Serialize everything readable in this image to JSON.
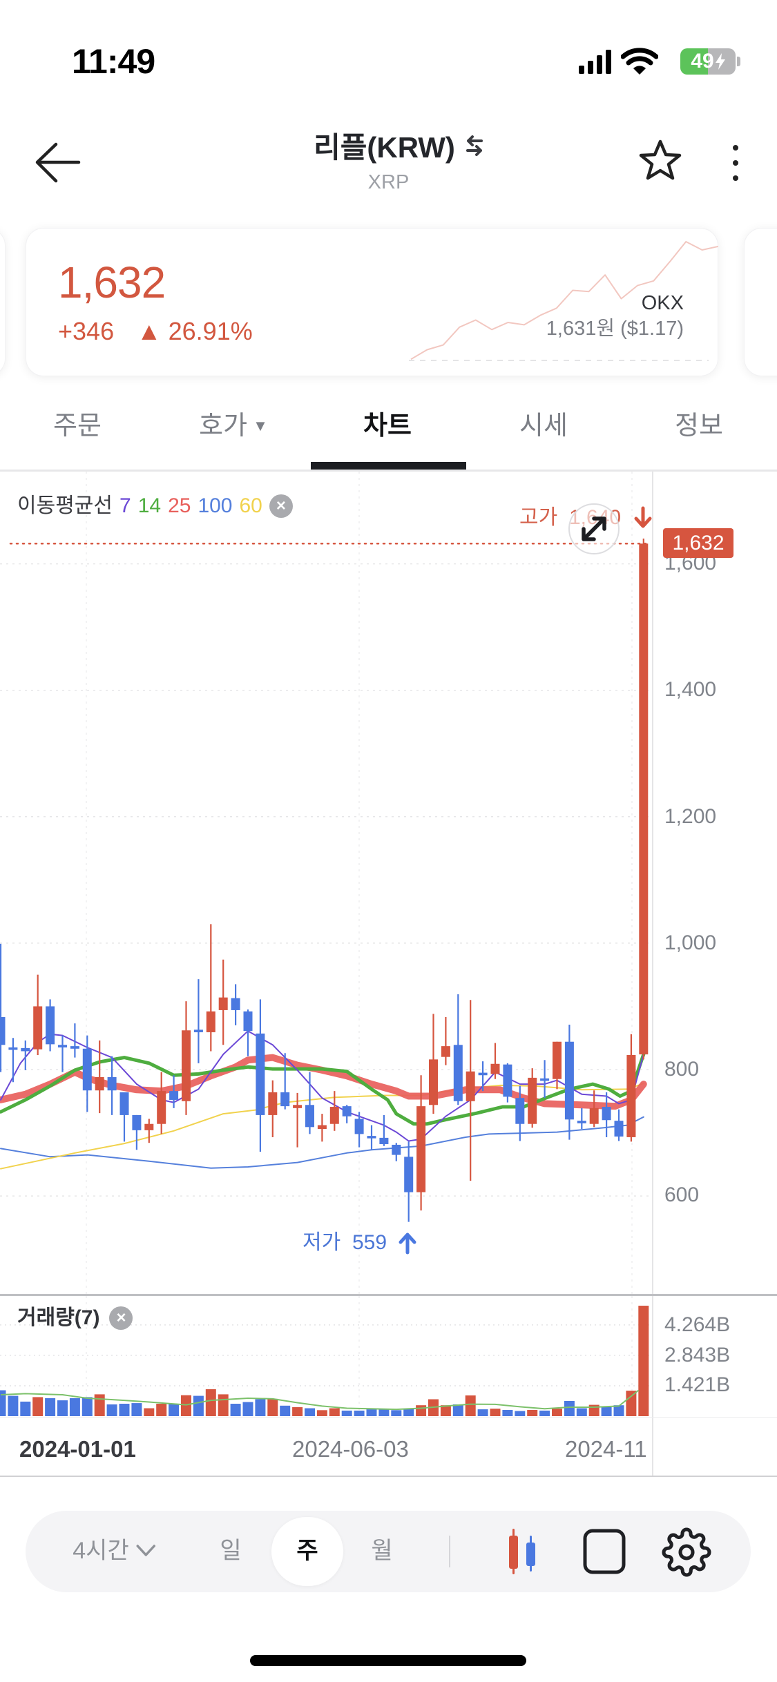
{
  "status_bar": {
    "time": "11:49",
    "battery": "49",
    "icons": [
      "signal-icon",
      "wifi-icon",
      "battery-charging-icon"
    ]
  },
  "header": {
    "title": "리플(KRW)",
    "subtitle": "XRP",
    "icons": {
      "back": "arrow-left-icon",
      "swap": "swap-icon",
      "favorite": "star-icon",
      "more": "kebab-menu-icon"
    }
  },
  "price_card": {
    "price": "1,632",
    "change": "+346",
    "change_pct": "▲ 26.91%",
    "exchange": "OKX",
    "exchange_price": "1,631원 ($1.17)",
    "color": "#d2573f",
    "sparkline_color": "#f2c7c0",
    "sparkline": [
      1,
      9,
      13,
      28,
      34,
      26,
      32,
      30,
      38,
      44,
      59,
      58,
      72,
      52,
      63,
      67,
      83,
      100,
      93,
      96
    ]
  },
  "tabs": [
    {
      "label": "주문"
    },
    {
      "label": "호가",
      "dropdown": "▼"
    },
    {
      "label": "차트",
      "active": true
    },
    {
      "label": "시세"
    },
    {
      "label": "정보"
    }
  ],
  "toolbar": {
    "interval_dropdown": "4시간",
    "periods": [
      "일",
      "주",
      "월"
    ],
    "selected_period": "주",
    "icons": [
      "candlestick-icon",
      "square-icon",
      "gear-icon"
    ]
  },
  "chart_data": {
    "type": "candlestick",
    "title": "리플(KRW)",
    "interval": "주",
    "ylim": [
      444,
      1746
    ],
    "y_ticks": [
      "1,600",
      "1,400",
      "1,200",
      "1,000",
      "800",
      "600"
    ],
    "y_tick_values": [
      1600,
      1400,
      1200,
      1000,
      800,
      600
    ],
    "x_ticks": [
      "2024-01-01",
      "2024-06-03",
      "2024-11"
    ],
    "up_color": "#d6553f",
    "down_color": "#4a78e0",
    "current_price": 1632,
    "current_price_label": "1,632",
    "high_label": "고가",
    "high_value": "1,640",
    "low_label": "저가",
    "low_value": "559",
    "ma_legend_label": "이동평균선",
    "candles_ohlc": [
      [
        883,
        999,
        796,
        839
      ],
      [
        835,
        850,
        780,
        832
      ],
      [
        834,
        846,
        799,
        829
      ],
      [
        832,
        950,
        823,
        900
      ],
      [
        900,
        911,
        829,
        840
      ],
      [
        839,
        854,
        796,
        835
      ],
      [
        837,
        873,
        819,
        833
      ],
      [
        833,
        854,
        733,
        767
      ],
      [
        767,
        846,
        731,
        788
      ],
      [
        788,
        821,
        728,
        767
      ],
      [
        764,
        764,
        686,
        728
      ],
      [
        728,
        728,
        673,
        704
      ],
      [
        704,
        722,
        684,
        714
      ],
      [
        714,
        796,
        698,
        766
      ],
      [
        766,
        791,
        739,
        752
      ],
      [
        750,
        908,
        728,
        862
      ],
      [
        863,
        943,
        810,
        859
      ],
      [
        859,
        1030,
        829,
        892
      ],
      [
        894,
        974,
        839,
        914
      ],
      [
        913,
        935,
        870,
        894
      ],
      [
        892,
        895,
        821,
        861
      ],
      [
        857,
        911,
        670,
        728
      ],
      [
        728,
        783,
        693,
        764
      ],
      [
        764,
        826,
        737,
        742
      ],
      [
        739,
        763,
        677,
        744
      ],
      [
        744,
        796,
        698,
        709
      ],
      [
        706,
        730,
        686,
        712
      ],
      [
        714,
        766,
        703,
        741
      ],
      [
        742,
        744,
        715,
        726
      ],
      [
        722,
        733,
        677,
        698
      ],
      [
        695,
        712,
        673,
        692
      ],
      [
        692,
        728,
        679,
        682
      ],
      [
        681,
        684,
        655,
        665
      ],
      [
        662,
        686,
        559,
        606
      ],
      [
        606,
        791,
        577,
        742
      ],
      [
        744,
        888,
        730,
        816
      ],
      [
        820,
        883,
        807,
        837
      ],
      [
        839,
        919,
        744,
        750
      ],
      [
        750,
        910,
        624,
        797
      ],
      [
        795,
        813,
        766,
        791
      ],
      [
        793,
        842,
        785,
        809
      ],
      [
        808,
        810,
        748,
        757
      ],
      [
        755,
        774,
        687,
        714
      ],
      [
        714,
        802,
        708,
        787
      ],
      [
        786,
        815,
        755,
        783
      ],
      [
        785,
        844,
        769,
        844
      ],
      [
        844,
        871,
        689,
        721
      ],
      [
        719,
        739,
        706,
        715
      ],
      [
        714,
        767,
        709,
        739
      ],
      [
        741,
        764,
        693,
        720
      ],
      [
        719,
        737,
        687,
        694
      ],
      [
        693,
        856,
        686,
        823
      ],
      [
        824,
        1640,
        816,
        1632
      ]
    ],
    "moving_averages": [
      {
        "period": "7",
        "color": "#6b48d6",
        "width": 2,
        "points": [
          [
            0,
            752
          ],
          [
            1.6,
            810
          ],
          [
            3,
            843
          ],
          [
            4,
            856
          ],
          [
            5,
            854
          ],
          [
            7,
            835
          ],
          [
            9,
            819
          ],
          [
            11,
            777
          ],
          [
            13,
            752
          ],
          [
            14,
            748
          ],
          [
            16,
            769
          ],
          [
            18,
            824
          ],
          [
            20,
            861
          ],
          [
            22,
            839
          ],
          [
            24,
            799
          ],
          [
            26,
            755
          ],
          [
            28,
            733
          ],
          [
            30,
            719
          ],
          [
            31,
            712
          ],
          [
            32,
            701
          ],
          [
            33,
            687
          ],
          [
            34,
            690
          ],
          [
            36,
            726
          ],
          [
            38,
            752
          ],
          [
            40,
            796
          ],
          [
            42,
            777
          ],
          [
            44,
            777
          ],
          [
            45,
            783
          ],
          [
            47,
            761
          ],
          [
            49,
            758
          ],
          [
            50,
            746
          ],
          [
            51,
            752
          ],
          [
            52,
            824
          ]
        ]
      },
      {
        "period": "14",
        "color": "#4ead3f",
        "width": 5,
        "points": [
          [
            0,
            733
          ],
          [
            2,
            752
          ],
          [
            4,
            774
          ],
          [
            6,
            799
          ],
          [
            8,
            812
          ],
          [
            10,
            819
          ],
          [
            12,
            810
          ],
          [
            14,
            791
          ],
          [
            16,
            793
          ],
          [
            18,
            799
          ],
          [
            20,
            804
          ],
          [
            22,
            801
          ],
          [
            24,
            801
          ],
          [
            26,
            801
          ],
          [
            28,
            797
          ],
          [
            30,
            769
          ],
          [
            31.3,
            752
          ],
          [
            32,
            730
          ],
          [
            33.4,
            714
          ],
          [
            34.5,
            714
          ],
          [
            36.3,
            722
          ],
          [
            38.5,
            731
          ],
          [
            40.6,
            741
          ],
          [
            42.3,
            741
          ],
          [
            44.1,
            755
          ],
          [
            46,
            769
          ],
          [
            47.9,
            777
          ],
          [
            49.2,
            769
          ],
          [
            50.1,
            758
          ],
          [
            51,
            766
          ],
          [
            52,
            824
          ]
        ]
      },
      {
        "period": "25",
        "color": "#e8605c",
        "width": 10,
        "points": [
          [
            0,
            752
          ],
          [
            2,
            761
          ],
          [
            4,
            777
          ],
          [
            6,
            796
          ],
          [
            7.2,
            785
          ],
          [
            9,
            775
          ],
          [
            11,
            768
          ],
          [
            13,
            766
          ],
          [
            15,
            774
          ],
          [
            17,
            790
          ],
          [
            19,
            804
          ],
          [
            20,
            815
          ],
          [
            22,
            819
          ],
          [
            24,
            807
          ],
          [
            26,
            799
          ],
          [
            28,
            790
          ],
          [
            30,
            777
          ],
          [
            32,
            766
          ],
          [
            33,
            758
          ],
          [
            35,
            758
          ],
          [
            37.6,
            768
          ],
          [
            40.4,
            768
          ],
          [
            42.3,
            755
          ],
          [
            44,
            746
          ],
          [
            47,
            744
          ],
          [
            49.7,
            742
          ],
          [
            51,
            752
          ],
          [
            52,
            777
          ]
        ]
      },
      {
        "period": "100",
        "color": "#5580dc",
        "width": 2,
        "points": [
          [
            0,
            675
          ],
          [
            4,
            662
          ],
          [
            7,
            665
          ],
          [
            12,
            655
          ],
          [
            17,
            644
          ],
          [
            20,
            646
          ],
          [
            24,
            653
          ],
          [
            28,
            668
          ],
          [
            30,
            673
          ],
          [
            34,
            679
          ],
          [
            37.6,
            693
          ],
          [
            39.5,
            698
          ],
          [
            45,
            701
          ],
          [
            48.8,
            708
          ],
          [
            50.7,
            712
          ],
          [
            52,
            725
          ]
        ]
      },
      {
        "period": "60",
        "color": "#f1d24d",
        "width": 2,
        "points": [
          [
            0,
            643
          ],
          [
            6,
            668
          ],
          [
            10,
            683
          ],
          [
            14,
            703
          ],
          [
            18,
            730
          ],
          [
            20.6,
            736
          ],
          [
            23,
            748
          ],
          [
            27,
            756
          ],
          [
            31,
            759
          ],
          [
            34,
            759
          ],
          [
            37.6,
            770
          ],
          [
            40.4,
            775
          ],
          [
            43.2,
            774
          ],
          [
            47,
            768
          ],
          [
            50.7,
            769
          ],
          [
            52,
            778
          ]
        ]
      }
    ],
    "volume": {
      "label": "거래량(7)",
      "unit": "B",
      "ticks": [
        "4.264B",
        "2.843B",
        "1.421B"
      ],
      "tick_values": [
        4.264,
        2.843,
        1.421
      ],
      "ma_color": "#7cc16a",
      "values": [
        1.21,
        0.95,
        0.68,
        0.89,
        0.84,
        0.74,
        0.84,
        0.89,
        1.02,
        0.55,
        0.58,
        0.61,
        0.37,
        0.58,
        0.58,
        0.98,
        0.95,
        1.26,
        1.02,
        0.58,
        0.66,
        0.79,
        0.81,
        0.49,
        0.42,
        0.37,
        0.28,
        0.37,
        0.26,
        0.26,
        0.32,
        0.32,
        0.28,
        0.34,
        0.51,
        0.79,
        0.51,
        0.55,
        0.97,
        0.32,
        0.35,
        0.29,
        0.24,
        0.29,
        0.26,
        0.35,
        0.71,
        0.37,
        0.53,
        0.42,
        0.51,
        1.19,
        5.16
      ],
      "ma7": [
        [
          0,
          1.0
        ],
        [
          2,
          1.05
        ],
        [
          5,
          1.0
        ],
        [
          7,
          0.84
        ],
        [
          10,
          0.74
        ],
        [
          12,
          0.66
        ],
        [
          15,
          0.53
        ],
        [
          17,
          0.74
        ],
        [
          20,
          0.84
        ],
        [
          22,
          0.81
        ],
        [
          24,
          0.63
        ],
        [
          26,
          0.47
        ],
        [
          28,
          0.37
        ],
        [
          32,
          0.32
        ],
        [
          34,
          0.37
        ],
        [
          36,
          0.47
        ],
        [
          38,
          0.56
        ],
        [
          40,
          0.55
        ],
        [
          42,
          0.44
        ],
        [
          44,
          0.35
        ],
        [
          46,
          0.42
        ],
        [
          48,
          0.42
        ],
        [
          50,
          0.47
        ],
        [
          51.6,
          1.21
        ]
      ]
    }
  }
}
